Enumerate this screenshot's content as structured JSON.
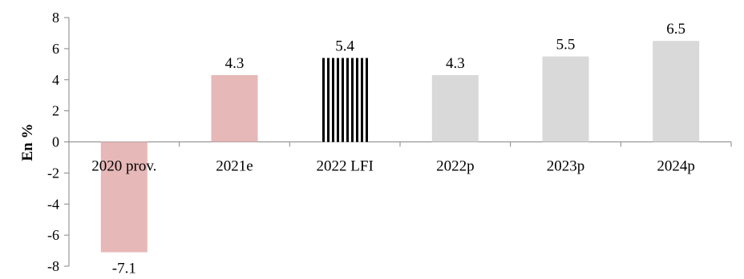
{
  "chart_data": {
    "type": "bar",
    "categories": [
      "2020 prov.",
      "2021e",
      "2022 LFI",
      "2022p",
      "2023p",
      "2024p"
    ],
    "values": [
      -7.1,
      4.3,
      5.4,
      4.3,
      5.5,
      6.5
    ],
    "data_labels": [
      "-7.1",
      "4.3",
      "5.4",
      "4.3",
      "5.5",
      "6.5"
    ],
    "bar_colors": [
      "#e6b8b7",
      "#e6b8b7",
      "striped-black-white",
      "#d9d9d9",
      "#d9d9d9",
      "#d9d9d9"
    ],
    "title": "",
    "xlabel": "",
    "ylabel": "En %",
    "ylim": [
      -8,
      8
    ],
    "yticks": [
      8,
      6,
      4,
      2,
      0,
      -2,
      -4,
      -6,
      -8
    ],
    "grid": false,
    "legend": "none"
  }
}
